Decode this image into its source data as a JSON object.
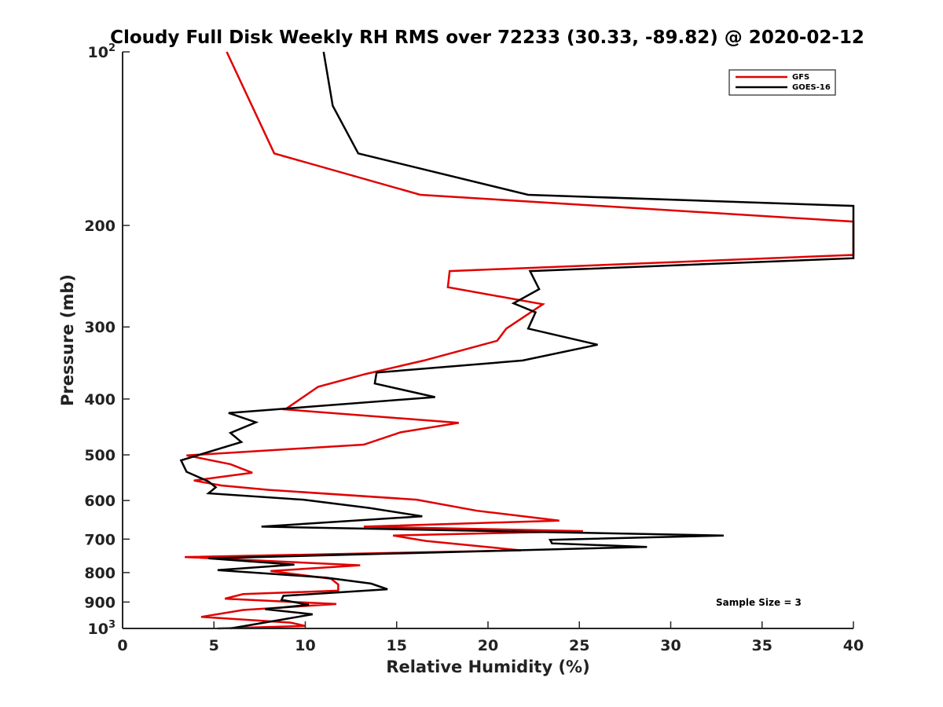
{
  "chart_data": {
    "type": "line",
    "title": "Cloudy Full Disk Weekly RH RMS over 72233 (30.33, -89.82) @ 2020-02-12",
    "xlabel": "Relative Humidity (%)",
    "ylabel": "Pressure (mb)",
    "xlim": [
      0,
      40
    ],
    "ylim": [
      100,
      1000
    ],
    "yscale": "log",
    "y_reversed": true,
    "grid": false,
    "legend_position": "top-right",
    "x_ticks": [
      0,
      5,
      10,
      15,
      20,
      25,
      30,
      35,
      40
    ],
    "x_tick_labels": [
      "0",
      "5",
      "10",
      "15",
      "20",
      "25",
      "30",
      "35",
      "40"
    ],
    "y_ticks": [
      100,
      200,
      300,
      400,
      500,
      600,
      700,
      800,
      900,
      1000
    ],
    "y_tick_labels": [
      {
        "base": "10",
        "exp": "2"
      },
      {
        "text": "200"
      },
      {
        "text": "300"
      },
      {
        "text": "400"
      },
      {
        "text": "500"
      },
      {
        "text": "600"
      },
      {
        "text": "700"
      },
      {
        "text": "800"
      },
      {
        "text": "900"
      },
      {
        "base": "10",
        "exp": "3"
      }
    ],
    "annotation": "Sample Size = 3",
    "series": [
      {
        "name": "GFS",
        "color": "#e00000",
        "points": [
          [
            5.7,
            100
          ],
          [
            8.3,
            150
          ],
          [
            16.3,
            177
          ],
          [
            40,
            197
          ],
          [
            40,
            225
          ],
          [
            17.9,
            240
          ],
          [
            17.8,
            256
          ],
          [
            23.0,
            274
          ],
          [
            21.0,
            302
          ],
          [
            20.5,
            317
          ],
          [
            16.5,
            343
          ],
          [
            13.3,
            362
          ],
          [
            10.7,
            381
          ],
          [
            8.9,
            417
          ],
          [
            18.4,
            440
          ],
          [
            15.2,
            457
          ],
          [
            13.2,
            480
          ],
          [
            3.5,
            501
          ],
          [
            5.9,
            519
          ],
          [
            7.1,
            537
          ],
          [
            3.9,
            554
          ],
          [
            5.4,
            565
          ],
          [
            8.0,
            575
          ],
          [
            16.1,
            598
          ],
          [
            19.4,
            625
          ],
          [
            23.9,
            650
          ],
          [
            13.2,
            666
          ],
          [
            25.2,
            678
          ],
          [
            14.8,
            690
          ],
          [
            16.6,
            705
          ],
          [
            21.8,
            732
          ],
          [
            3.4,
            752
          ],
          [
            13.0,
            777
          ],
          [
            8.1,
            795
          ],
          [
            9.3,
            804
          ],
          [
            11.4,
            820
          ],
          [
            11.8,
            839
          ],
          [
            11.8,
            860
          ],
          [
            6.6,
            872
          ],
          [
            5.6,
            888
          ],
          [
            11.7,
            907
          ],
          [
            6.6,
            929
          ],
          [
            4.3,
            955
          ],
          [
            9.2,
            977
          ],
          [
            10.0,
            990
          ],
          [
            5.2,
            1000
          ]
        ]
      },
      {
        "name": "GOES-16",
        "color": "#000000",
        "points": [
          [
            11.0,
            100
          ],
          [
            11.5,
            124
          ],
          [
            12.9,
            150
          ],
          [
            22.2,
            177
          ],
          [
            40,
            185
          ],
          [
            40,
            228
          ],
          [
            22.3,
            240
          ],
          [
            22.8,
            258
          ],
          [
            21.4,
            273
          ],
          [
            22.6,
            283
          ],
          [
            22.2,
            302
          ],
          [
            26.0,
            322
          ],
          [
            21.9,
            343
          ],
          [
            13.9,
            360
          ],
          [
            13.8,
            376
          ],
          [
            17.1,
            397
          ],
          [
            5.8,
            423
          ],
          [
            7.3,
            439
          ],
          [
            5.9,
            458
          ],
          [
            6.5,
            475
          ],
          [
            3.2,
            511
          ],
          [
            3.5,
            535
          ],
          [
            4.7,
            556
          ],
          [
            5.1,
            569
          ],
          [
            4.7,
            583
          ],
          [
            9.9,
            598
          ],
          [
            13.5,
            618
          ],
          [
            16.4,
            639
          ],
          [
            7.6,
            666
          ],
          [
            32.9,
            690
          ],
          [
            23.4,
            702
          ],
          [
            23.5,
            712
          ],
          [
            28.7,
            722
          ],
          [
            4.7,
            756
          ],
          [
            9.4,
            775
          ],
          [
            5.2,
            792
          ],
          [
            11.1,
            816
          ],
          [
            13.6,
            836
          ],
          [
            14.5,
            855
          ],
          [
            8.8,
            878
          ],
          [
            8.7,
            892
          ],
          [
            10.2,
            910
          ],
          [
            7.8,
            926
          ],
          [
            10.4,
            945
          ],
          [
            5.9,
            1000
          ]
        ]
      }
    ]
  }
}
